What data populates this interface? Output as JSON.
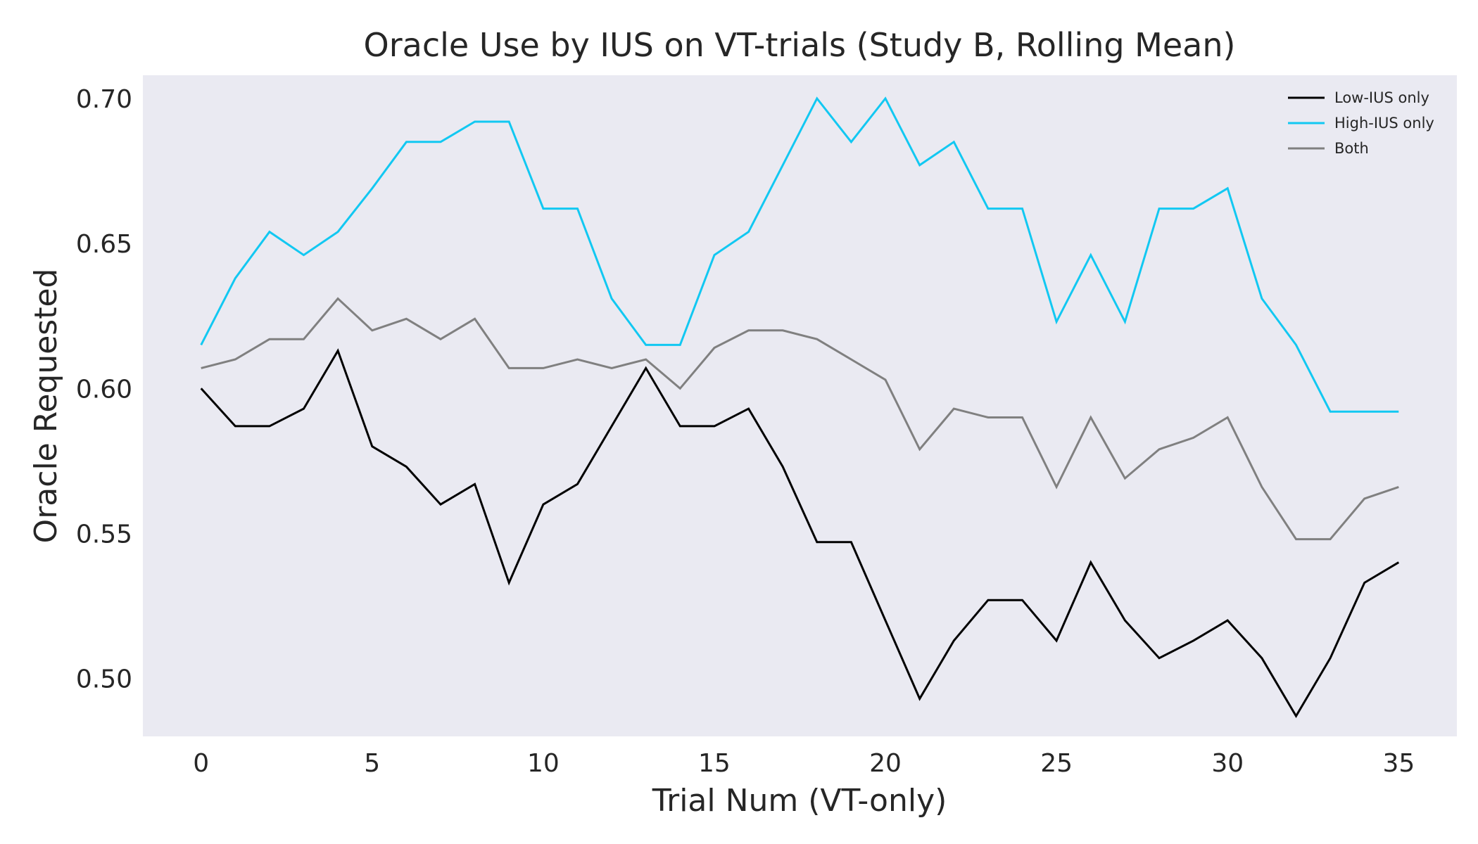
{
  "chart_data": {
    "type": "line",
    "title": "Oracle Use by IUS on VT-trials (Study B, Rolling Mean)",
    "xlabel": "Trial Num (VT-only)",
    "ylabel": "Oracle Requested",
    "xlim": [
      -1.7,
      36.7
    ],
    "ylim": [
      0.48,
      0.708
    ],
    "x_ticks": [
      0,
      5,
      10,
      15,
      20,
      25,
      30,
      35
    ],
    "y_ticks": [
      0.5,
      0.55,
      0.6,
      0.65,
      0.7
    ],
    "grid": false,
    "background": "#eaeaf2",
    "legend_position": "top-right",
    "x": [
      0,
      1,
      2,
      3,
      4,
      5,
      6,
      7,
      8,
      9,
      10,
      11,
      12,
      13,
      14,
      15,
      16,
      17,
      18,
      19,
      20,
      21,
      22,
      23,
      24,
      25,
      26,
      27,
      28,
      29,
      30,
      31,
      32,
      33,
      34,
      35
    ],
    "series": [
      {
        "name": "Low-IUS only",
        "color": "#000000",
        "values": [
          0.6,
          0.587,
          0.587,
          0.593,
          0.613,
          0.58,
          0.573,
          0.56,
          0.567,
          0.533,
          0.56,
          0.567,
          0.587,
          0.607,
          0.587,
          0.587,
          0.593,
          0.573,
          0.547,
          0.547,
          0.52,
          0.493,
          0.513,
          0.527,
          0.527,
          0.513,
          0.54,
          0.52,
          0.507,
          0.513,
          0.52,
          0.507,
          0.487,
          0.507,
          0.533,
          0.54
        ]
      },
      {
        "name": "High-IUS only",
        "color": "#12c8f2",
        "values": [
          0.615,
          0.638,
          0.654,
          0.646,
          0.654,
          0.669,
          0.685,
          0.685,
          0.692,
          0.692,
          0.662,
          0.662,
          0.631,
          0.615,
          0.615,
          0.646,
          0.654,
          0.677,
          0.7,
          0.685,
          0.7,
          0.677,
          0.685,
          0.662,
          0.662,
          0.623,
          0.646,
          0.623,
          0.662,
          0.662,
          0.669,
          0.631,
          0.615,
          0.592,
          0.592,
          0.592
        ]
      },
      {
        "name": "Both",
        "color": "#808080",
        "values": [
          0.607,
          0.61,
          0.617,
          0.617,
          0.631,
          0.62,
          0.624,
          0.617,
          0.624,
          0.607,
          0.607,
          0.61,
          0.607,
          0.61,
          0.6,
          0.614,
          0.62,
          0.62,
          0.617,
          0.61,
          0.603,
          0.579,
          0.593,
          0.59,
          0.59,
          0.566,
          0.59,
          0.569,
          0.579,
          0.583,
          0.59,
          0.566,
          0.548,
          0.548,
          0.562,
          0.566
        ]
      }
    ]
  }
}
